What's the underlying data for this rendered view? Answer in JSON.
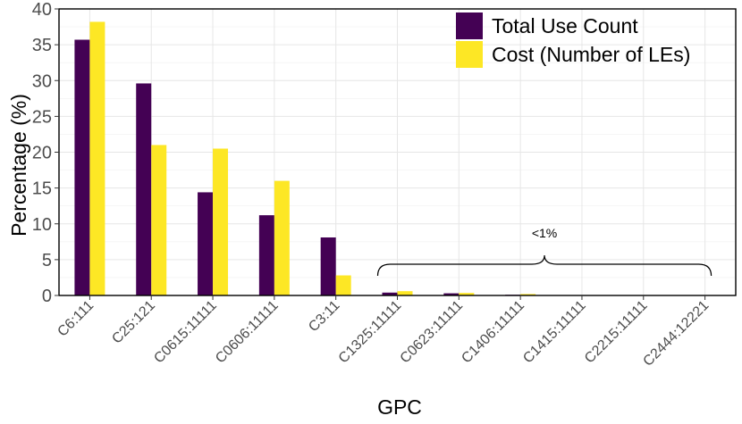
{
  "chart_data": {
    "type": "bar",
    "title": "",
    "xlabel": "GPC",
    "ylabel": "Percentage (%)",
    "ylim": [
      0,
      40
    ],
    "yticks": [
      0,
      5,
      10,
      15,
      20,
      25,
      30,
      35,
      40
    ],
    "grid": true,
    "legend_position": "top-right",
    "categories": [
      "C6:111",
      "C25:121",
      "C0615:11111",
      "C0606:11111",
      "C3:11",
      "C1325:11111",
      "C0623:11111",
      "C1406:11111",
      "C1415:11111",
      "C2215:11111",
      "C2444:12221"
    ],
    "series": [
      {
        "name": "Total Use Count",
        "color": "#440154",
        "values": [
          35.7,
          29.6,
          14.4,
          11.2,
          8.1,
          0.4,
          0.3,
          0.1,
          0.05,
          0.05,
          0.05
        ]
      },
      {
        "name": "Cost (Number of LEs)",
        "color": "#FDE725",
        "values": [
          38.2,
          21.0,
          20.5,
          16.0,
          2.8,
          0.6,
          0.35,
          0.2,
          0.05,
          0.05,
          0.05
        ]
      }
    ],
    "annotation": {
      "label": "<1%",
      "from_category": "C1325:11111",
      "to_category": "C2444:12221"
    }
  }
}
